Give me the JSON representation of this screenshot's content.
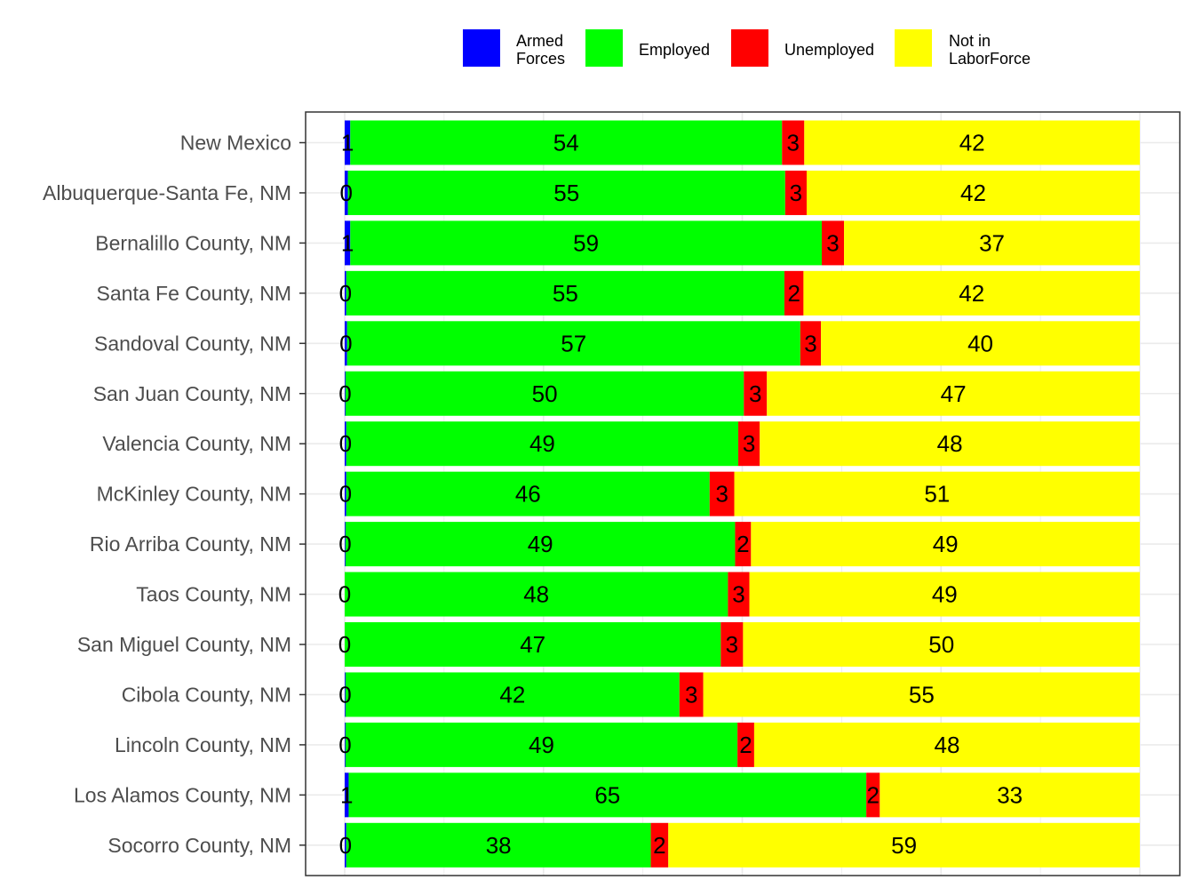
{
  "chart_data": {
    "type": "bar",
    "orientation": "horizontal",
    "stacked": true,
    "normalized_percent": true,
    "categories": [
      "New Mexico",
      "Albuquerque-Santa Fe, NM",
      "Bernalillo County, NM",
      "Santa Fe County, NM",
      "Sandoval County, NM",
      "San Juan County, NM",
      "Valencia County, NM",
      "McKinley County, NM",
      "Rio Arriba County, NM",
      "Taos County, NM",
      "San Miguel County, NM",
      "Cibola County, NM",
      "Lincoln County, NM",
      "Los Alamos County, NM",
      "Socorro County, NM"
    ],
    "series": [
      {
        "name": "Armed Forces",
        "color": "#0000ff",
        "values": [
          0.7,
          0.4,
          0.7,
          0.2,
          0.3,
          0.1,
          0.2,
          0.2,
          0.1,
          0.0,
          0.0,
          0.1,
          0.1,
          0.5,
          0.2
        ],
        "labels": [
          "1",
          "0",
          "1",
          "0",
          "0",
          "0",
          "0",
          "0",
          "0",
          "0",
          "0",
          "0",
          "0",
          "1",
          "0"
        ]
      },
      {
        "name": "Employed",
        "color": "#00ff00",
        "values": [
          54.3,
          55.0,
          59.3,
          55.1,
          57.0,
          50.1,
          49.3,
          45.7,
          49.0,
          48.2,
          47.3,
          42.0,
          49.3,
          65.1,
          38.3
        ],
        "labels": [
          "54",
          "55",
          "59",
          "55",
          "57",
          "50",
          "49",
          "46",
          "49",
          "48",
          "47",
          "42",
          "49",
          "65",
          "38"
        ]
      },
      {
        "name": "Unemployed",
        "color": "#ff0000",
        "values": [
          2.8,
          2.7,
          2.8,
          2.4,
          2.6,
          2.9,
          2.7,
          3.1,
          2.0,
          2.7,
          2.8,
          3.0,
          2.1,
          1.7,
          2.2
        ],
        "labels": [
          "3",
          "3",
          "3",
          "2",
          "3",
          "3",
          "3",
          "3",
          "2",
          "3",
          "3",
          "3",
          "2",
          "2",
          "2"
        ]
      },
      {
        "name": "Not in LaborForce",
        "color": "#ffff00",
        "values": [
          42.2,
          41.9,
          37.2,
          42.3,
          40.1,
          46.9,
          47.8,
          51.0,
          48.9,
          49.1,
          49.9,
          54.9,
          48.5,
          32.7,
          59.3
        ],
        "labels": [
          "42",
          "42",
          "37",
          "42",
          "40",
          "47",
          "48",
          "51",
          "49",
          "49",
          "50",
          "55",
          "48",
          "33",
          "59"
        ]
      }
    ],
    "legend": {
      "position": "top",
      "items": [
        {
          "lines": [
            "Armed",
            "Forces"
          ],
          "color": "#0000ff"
        },
        {
          "lines": [
            "Employed"
          ],
          "color": "#00ff00"
        },
        {
          "lines": [
            "Unemployed"
          ],
          "color": "#ff0000"
        },
        {
          "lines": [
            "Not in",
            "LaborForce"
          ],
          "color": "#ffff00"
        }
      ]
    },
    "xlim": [
      0,
      100
    ],
    "grid": true,
    "title": "",
    "xlabel": "",
    "ylabel": ""
  }
}
